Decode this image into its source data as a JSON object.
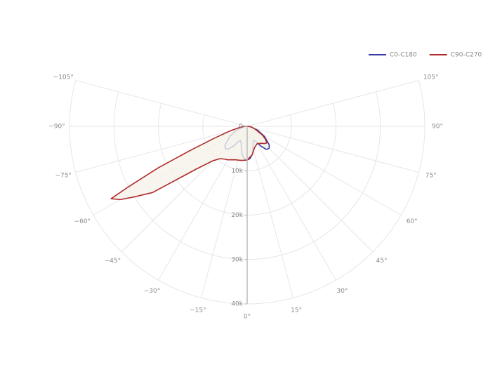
{
  "chart_data": {
    "type": "polar",
    "series": [
      {
        "name": "C0-C180",
        "color": "#3a3aa6",
        "fill": "#f3f1ea",
        "theta": [
          -90,
          -80,
          -70,
          -60,
          -50,
          -45,
          -40,
          -35,
          -30,
          -25,
          -20,
          -15,
          -10,
          -5,
          0,
          5,
          10,
          15,
          20,
          25,
          30,
          35,
          40,
          45,
          50,
          60,
          70,
          80,
          90
        ],
        "values": [
          300,
          1000,
          2500,
          4500,
          6500,
          7000,
          6800,
          5500,
          4000,
          3500,
          4000,
          5000,
          6500,
          7300,
          7600,
          7300,
          6500,
          5000,
          4000,
          3500,
          4000,
          5500,
          6800,
          7000,
          6500,
          4500,
          2500,
          1000,
          300
        ]
      },
      {
        "name": "C90-C270",
        "color": "#b02a2a",
        "fill": "#f5f2ea",
        "theta": [
          -90,
          -85,
          -80,
          -75,
          -70,
          -67,
          -65,
          -63,
          -62,
          -60,
          -58,
          -55,
          -50,
          -45,
          -40,
          -35,
          -30,
          -20,
          -10,
          0,
          10,
          20,
          30,
          40,
          45,
          50,
          55,
          60,
          70,
          80,
          90
        ],
        "values": [
          500,
          1000,
          2000,
          4000,
          8000,
          14000,
          22000,
          30000,
          34700,
          33000,
          30000,
          26000,
          15000,
          11000,
          9500,
          9000,
          8700,
          8000,
          7800,
          7600,
          6500,
          5000,
          4500,
          5000,
          5500,
          5800,
          5000,
          4000,
          2000,
          1000,
          300
        ]
      }
    ],
    "rlim": [
      0,
      40000
    ],
    "rticks": [
      0,
      {
        "value": 10000,
        "label": "10k"
      },
      {
        "value": 20000,
        "label": "20k"
      },
      {
        "value": 30000,
        "label": "30k"
      },
      {
        "value": 40000,
        "label": "40k"
      }
    ],
    "thetaticks": [
      {
        "value": -105,
        "label": "−105°"
      },
      {
        "value": -90,
        "label": "−90°"
      },
      {
        "value": -75,
        "label": "−75°"
      },
      {
        "value": -60,
        "label": "−60°"
      },
      {
        "value": -45,
        "label": "−45°"
      },
      {
        "value": -30,
        "label": "−30°"
      },
      {
        "value": -15,
        "label": "−15°"
      },
      {
        "value": 0,
        "label": "0°"
      },
      {
        "value": 15,
        "label": "15°"
      },
      {
        "value": 30,
        "label": "30°"
      },
      {
        "value": 45,
        "label": "45°"
      },
      {
        "value": 60,
        "label": "60°"
      },
      {
        "value": 75,
        "label": "75°"
      },
      {
        "value": 90,
        "label": "90°"
      },
      {
        "value": 105,
        "label": "105°"
      }
    ],
    "grid": true,
    "legend": "top-right"
  }
}
